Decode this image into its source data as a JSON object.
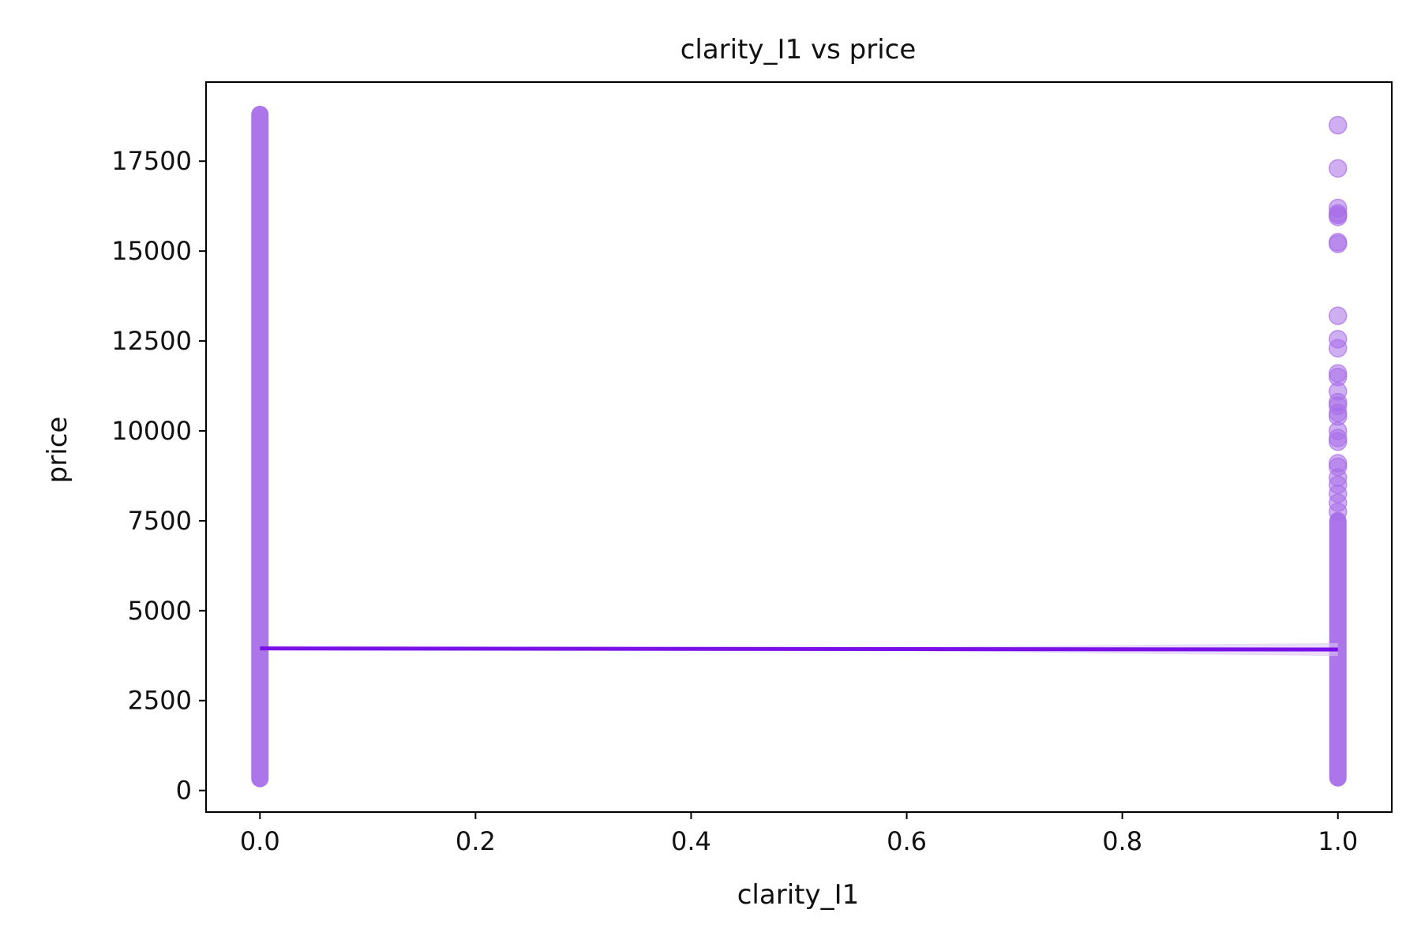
{
  "chart_data": {
    "type": "scatter",
    "title": "clarity_I1 vs price",
    "xlabel": "clarity_I1",
    "ylabel": "price",
    "xlim": [
      -0.05,
      1.05
    ],
    "ylim": [
      -600,
      19700
    ],
    "x_ticks": [
      {
        "value": 0.0,
        "label": "0.0"
      },
      {
        "value": 0.2,
        "label": "0.2"
      },
      {
        "value": 0.4,
        "label": "0.4"
      },
      {
        "value": 0.6,
        "label": "0.6"
      },
      {
        "value": 0.8,
        "label": "0.8"
      },
      {
        "value": 1.0,
        "label": "1.0"
      }
    ],
    "y_ticks": [
      {
        "value": 0,
        "label": "0"
      },
      {
        "value": 2500,
        "label": "2500"
      },
      {
        "value": 5000,
        "label": "5000"
      },
      {
        "value": 7500,
        "label": "7500"
      },
      {
        "value": 10000,
        "label": "10000"
      },
      {
        "value": 12500,
        "label": "12500"
      },
      {
        "value": 15000,
        "label": "15000"
      },
      {
        "value": 17500,
        "label": "17500"
      }
    ],
    "grid": false,
    "legend": "none",
    "colors": {
      "points": "#a86ee8",
      "regression_line": "#7a10e8",
      "confidence_band": "#d9c4f5"
    },
    "point_bands": [
      {
        "x": 0,
        "y_min": 330,
        "y_max": 18800
      },
      {
        "x": 1,
        "y_min": 350,
        "y_max": 7500
      }
    ],
    "points_x1_sparse": [
      7750,
      8000,
      8250,
      8500,
      8700,
      9000,
      9100,
      9700,
      9800,
      10000,
      10400,
      10500,
      10700,
      10800,
      11100,
      11500,
      11600,
      12300,
      12550,
      13200,
      15200,
      15250,
      15950,
      16000,
      16050,
      16200,
      17300,
      18500
    ],
    "regression": {
      "x": [
        0,
        1
      ],
      "y": [
        3950,
        3920
      ],
      "ci_halfwidth_at_x1": 180
    }
  }
}
